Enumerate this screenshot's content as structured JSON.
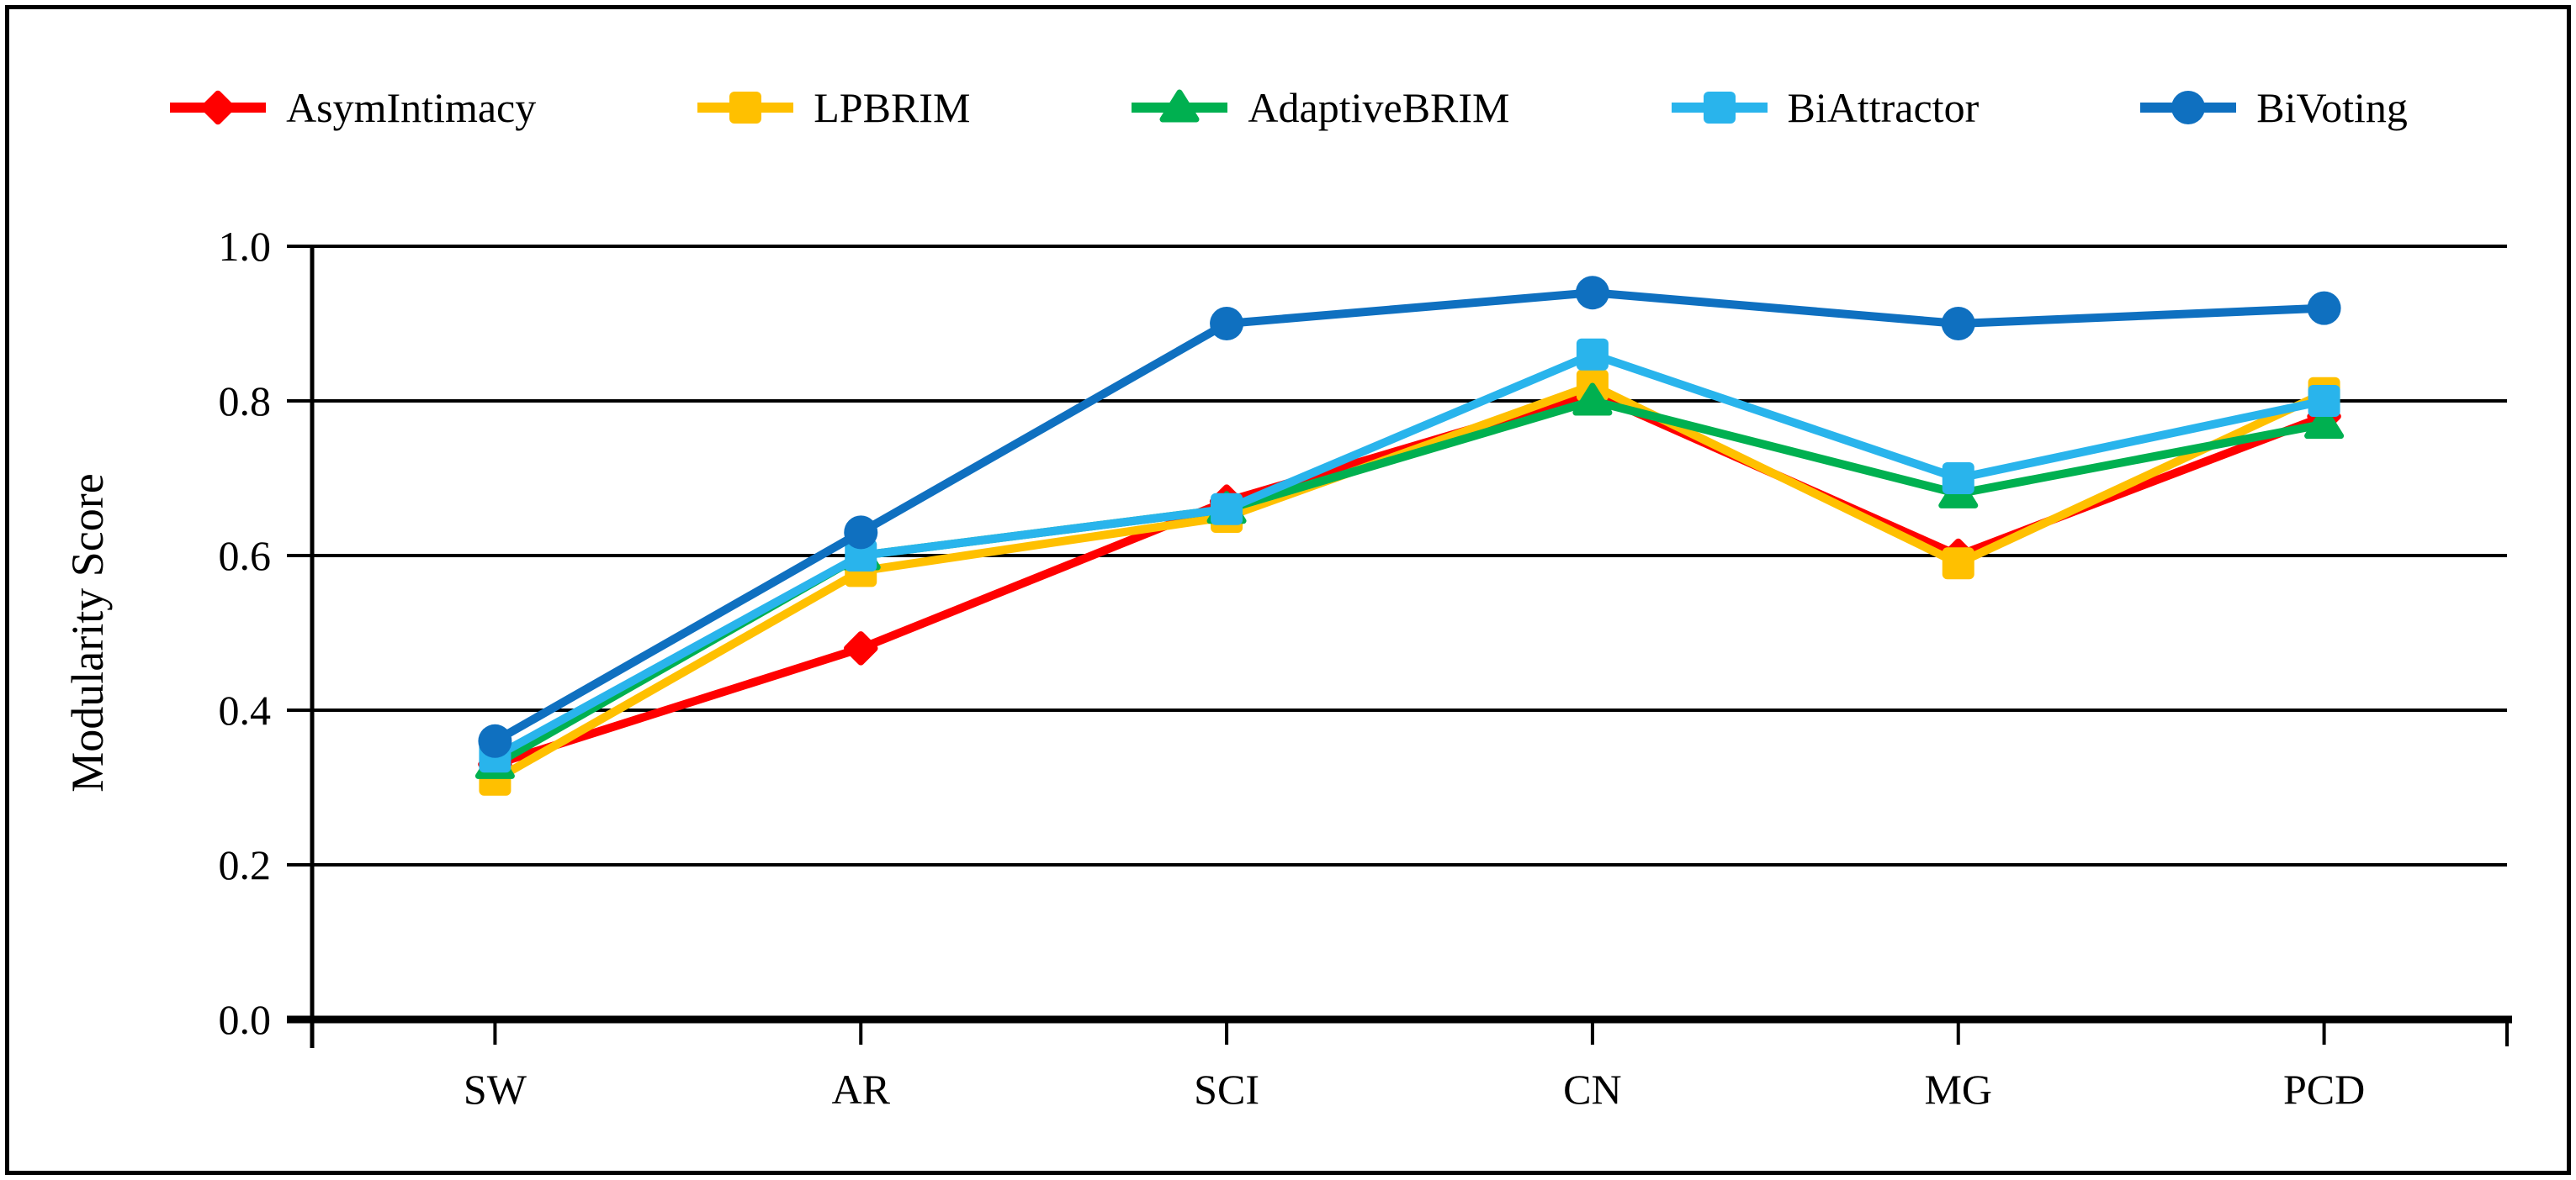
{
  "chart_data": {
    "type": "line",
    "title": "",
    "xlabel": "",
    "ylabel": "Modularity Score",
    "categories": [
      "SW",
      "AR",
      "SCI",
      "CN",
      "MG",
      "PCD"
    ],
    "ylim": [
      0.0,
      1.0
    ],
    "yticks": [
      0.0,
      0.2,
      0.4,
      0.6,
      0.8,
      1.0
    ],
    "ytick_labels": [
      "0.0",
      "0.2",
      "0.4",
      "0.6",
      "0.8",
      "1.0"
    ],
    "grid": "horizontal",
    "legend_position": "top",
    "series": [
      {
        "name": "AsymIntimacy",
        "color": "#FF0000",
        "marker": "diamond",
        "values": [
          0.33,
          0.48,
          0.67,
          0.81,
          0.6,
          0.78
        ]
      },
      {
        "name": "LPBRIM",
        "color": "#FFC000",
        "marker": "square",
        "values": [
          0.31,
          0.58,
          0.65,
          0.82,
          0.59,
          0.81
        ]
      },
      {
        "name": "AdaptiveBRIM",
        "color": "#00B050",
        "marker": "triangle",
        "values": [
          0.33,
          0.6,
          0.66,
          0.8,
          0.68,
          0.77
        ]
      },
      {
        "name": "BiAttractor",
        "color": "#29B4EC",
        "marker": "square",
        "values": [
          0.34,
          0.6,
          0.66,
          0.86,
          0.7,
          0.8
        ]
      },
      {
        "name": "BiVoting",
        "color": "#0F70C0",
        "marker": "circle",
        "values": [
          0.36,
          0.63,
          0.9,
          0.94,
          0.9,
          0.92
        ]
      }
    ]
  }
}
